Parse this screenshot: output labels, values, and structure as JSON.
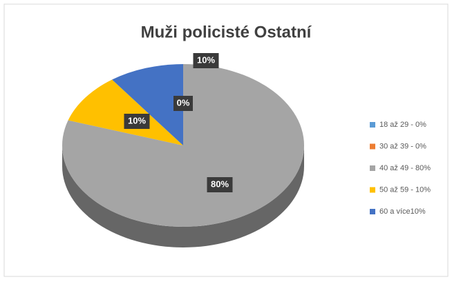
{
  "chart_data": {
    "type": "pie",
    "title": "Muži policisté Ostatní",
    "categories": [
      "18 až 29 - 0%",
      "30 až 39 - 0%",
      "40 až 49 - 80%",
      "50 až 59 - 10%",
      "60 a více10%"
    ],
    "values": [
      0,
      0,
      80,
      10,
      10
    ],
    "value_labels": [
      "0%",
      "0%",
      "80%",
      "10%",
      "10%"
    ],
    "colors": [
      "#5b9bd5",
      "#ed7d31",
      "#a5a5a5",
      "#ffc000",
      "#4472c4"
    ],
    "legend": "right"
  }
}
